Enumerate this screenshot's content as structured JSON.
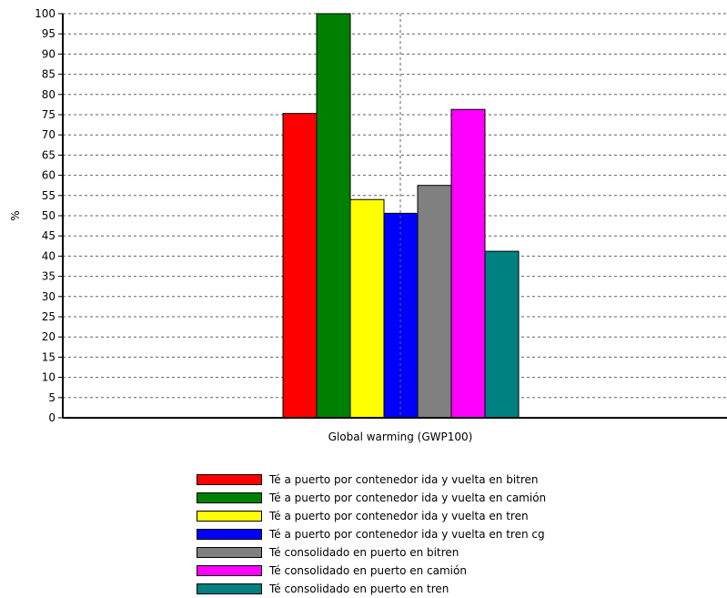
{
  "chart_data": {
    "type": "bar",
    "title": "",
    "ylabel": "%",
    "xlabel": "",
    "categories": [
      "Global warming (GWP100)"
    ],
    "ylim": [
      0,
      100
    ],
    "yticks": [
      0,
      5,
      10,
      15,
      20,
      25,
      30,
      35,
      40,
      45,
      50,
      55,
      60,
      65,
      70,
      75,
      80,
      85,
      90,
      95,
      100
    ],
    "grid": true,
    "legend_position": "bottom",
    "series": [
      {
        "name": "Té a puerto por contenedor ida y vuelta en bitren",
        "values": [
          75.3
        ],
        "color": "#ff0000"
      },
      {
        "name": "Té a puerto por contenedor ida y vuelta en camión",
        "values": [
          100
        ],
        "color": "#008000"
      },
      {
        "name": "Té a puerto por contenedor ida y vuelta en tren",
        "values": [
          54.0
        ],
        "color": "#ffff00"
      },
      {
        "name": "Té a puerto por contenedor ida y vuelta en tren cg",
        "values": [
          50.6
        ],
        "color": "#0000ff"
      },
      {
        "name": "Té consolidado en puerto en bitren",
        "values": [
          57.5
        ],
        "color": "#808080"
      },
      {
        "name": "Té consolidado en puerto en camión",
        "values": [
          76.3
        ],
        "color": "#ff00ff"
      },
      {
        "name": "Té consolidado en puerto en tren",
        "values": [
          41.2
        ],
        "color": "#008080"
      }
    ]
  }
}
